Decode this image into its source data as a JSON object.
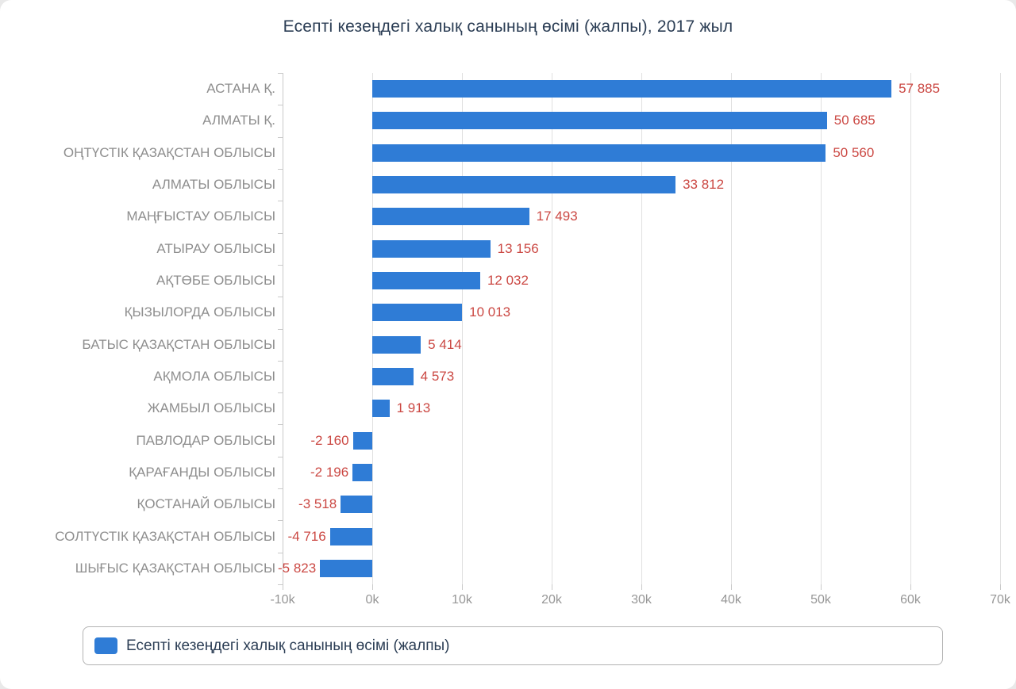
{
  "page": {
    "background": "#e9e9e9",
    "card_background": "#ffffff"
  },
  "chart_data": {
    "type": "bar",
    "orientation": "horizontal",
    "title": "Есепті кезеңдегі халық санының өсімі (жалпы), 2017 жыл",
    "series_name": "Есепті кезеңдегі халық санының өсімі (жалпы)",
    "categories": [
      "АСТАНА Қ.",
      "АЛМАТЫ Қ.",
      "ОҢТҮСТІК ҚАЗАҚСТАН ОБЛЫСЫ",
      "АЛМАТЫ ОБЛЫСЫ",
      "МАҢҒЫСТАУ ОБЛЫСЫ",
      "АТЫРАУ ОБЛЫСЫ",
      "АҚТӨБЕ ОБЛЫСЫ",
      "ҚЫЗЫЛОРДА ОБЛЫСЫ",
      "БАТЫС ҚАЗАҚСТАН ОБЛЫСЫ",
      "АҚМОЛА ОБЛЫСЫ",
      "ЖАМБЫЛ ОБЛЫСЫ",
      "ПАВЛОДАР ОБЛЫСЫ",
      "ҚАРАҒАНДЫ ОБЛЫСЫ",
      "ҚОСТАНАЙ ОБЛЫСЫ",
      "СОЛТҮСТІК ҚАЗАҚСТАН ОБЛЫСЫ",
      "ШЫҒЫС ҚАЗАҚСТАН ОБЛЫСЫ"
    ],
    "values": [
      57885,
      50685,
      50560,
      33812,
      17493,
      13156,
      12032,
      10013,
      5414,
      4573,
      1913,
      -2160,
      -2196,
      -3518,
      -4716,
      -5823
    ],
    "value_labels": [
      "57 885",
      "50 685",
      "50 560",
      "33 812",
      "17 493",
      "13 156",
      "12 032",
      "10 013",
      "5 414",
      "4 573",
      "1 913",
      "-2 160",
      "-2 196",
      "-3 518",
      "-4 716",
      "-5 823"
    ],
    "x_ticks": [
      {
        "value": -10000,
        "label": "-10k"
      },
      {
        "value": 0,
        "label": "0k"
      },
      {
        "value": 10000,
        "label": "10k"
      },
      {
        "value": 20000,
        "label": "20k"
      },
      {
        "value": 30000,
        "label": "30k"
      },
      {
        "value": 40000,
        "label": "40k"
      },
      {
        "value": 50000,
        "label": "50k"
      },
      {
        "value": 60000,
        "label": "60k"
      },
      {
        "value": 70000,
        "label": "70k"
      }
    ],
    "xlim": [
      -10000,
      70000
    ],
    "grid": true,
    "legend_position": "bottom",
    "colors": {
      "bar": "#2f7cd6",
      "value_label": "#cb4843",
      "category_label": "#8e8e8e",
      "axis_label": "#969696",
      "title": "#2c3e55",
      "grid": "#e0e0e0",
      "axis_line": "#c9c9c9",
      "legend_border": "#b3b3b3",
      "legend_text": "#2c3e55"
    }
  }
}
